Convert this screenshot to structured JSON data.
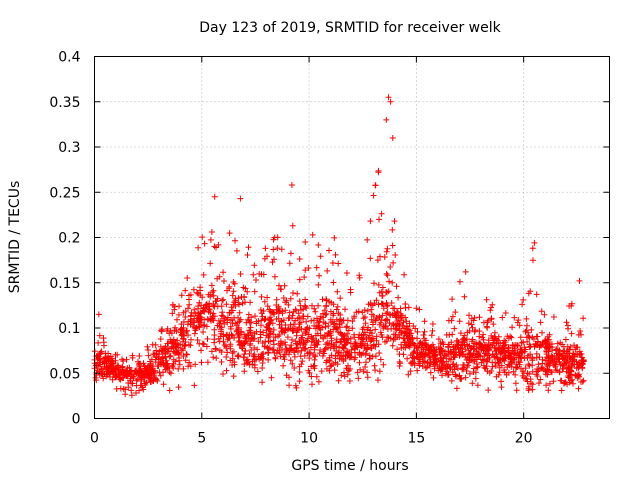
{
  "chart_data": {
    "type": "scatter",
    "title": "Day 123 of 2019, SRMTID for receiver welk",
    "xlabel": "GPS time / hours",
    "ylabel": "SRMTID / TECUs",
    "xlim": [
      0,
      24
    ],
    "ylim": [
      0,
      0.4
    ],
    "grid": true,
    "marker": "+",
    "color": "#ff0000",
    "x_ticks": [
      0,
      5,
      10,
      15,
      20
    ],
    "x_tick_labels": [
      "0",
      "5",
      "10",
      "15",
      "20"
    ],
    "y_ticks": [
      0,
      0.05,
      0.1,
      0.15,
      0.2,
      0.25,
      0.3,
      0.35,
      0.4
    ],
    "y_tick_labels": [
      "0",
      "0.05",
      "0.1",
      "0.15",
      "0.2",
      "0.25",
      "0.3",
      "0.35",
      "0.4"
    ],
    "envelope": {
      "x": [
        0,
        0.5,
        1,
        1.5,
        2,
        2.5,
        3,
        3.5,
        4,
        4.5,
        5,
        5.5,
        6,
        6.5,
        7,
        7.5,
        8,
        8.5,
        9,
        9.5,
        10,
        10.5,
        11,
        11.5,
        12,
        12.5,
        13,
        13.5,
        14,
        14.5,
        15,
        15.5,
        16,
        16.5,
        17,
        17.5,
        18,
        18.5,
        19,
        19.5,
        20,
        20.5,
        21,
        21.5,
        22,
        22.5,
        22.8
      ],
      "mean": [
        0.06,
        0.058,
        0.055,
        0.05,
        0.048,
        0.05,
        0.06,
        0.07,
        0.085,
        0.1,
        0.11,
        0.105,
        0.095,
        0.1,
        0.09,
        0.085,
        0.09,
        0.095,
        0.1,
        0.09,
        0.085,
        0.09,
        0.095,
        0.085,
        0.08,
        0.085,
        0.1,
        0.12,
        0.11,
        0.09,
        0.075,
        0.07,
        0.065,
        0.065,
        0.07,
        0.07,
        0.075,
        0.075,
        0.07,
        0.07,
        0.068,
        0.07,
        0.068,
        0.065,
        0.065,
        0.062,
        0.062
      ],
      "max": [
        0.115,
        0.09,
        0.08,
        0.075,
        0.07,
        0.08,
        0.1,
        0.12,
        0.14,
        0.18,
        0.2,
        0.245,
        0.2,
        0.24,
        0.21,
        0.19,
        0.2,
        0.21,
        0.258,
        0.18,
        0.215,
        0.21,
        0.22,
        0.19,
        0.16,
        0.18,
        0.245,
        0.355,
        0.24,
        0.15,
        0.125,
        0.11,
        0.1,
        0.12,
        0.162,
        0.125,
        0.14,
        0.15,
        0.12,
        0.11,
        0.15,
        0.195,
        0.13,
        0.11,
        0.12,
        0.15,
        0.11
      ],
      "min": [
        0.035,
        0.035,
        0.03,
        0.025,
        0.025,
        0.025,
        0.03,
        0.03,
        0.035,
        0.025,
        0.04,
        0.045,
        0.04,
        0.04,
        0.035,
        0.035,
        0.035,
        0.03,
        0.035,
        0.03,
        0.025,
        0.04,
        0.04,
        0.04,
        0.035,
        0.035,
        0.04,
        0.045,
        0.05,
        0.045,
        0.04,
        0.035,
        0.035,
        0.03,
        0.03,
        0.03,
        0.03,
        0.03,
        0.03,
        0.03,
        0.03,
        0.03,
        0.03,
        0.03,
        0.03,
        0.03,
        0.03
      ]
    },
    "notable_points": [
      {
        "x": 13.7,
        "y": 0.355
      },
      {
        "x": 13.8,
        "y": 0.35
      },
      {
        "x": 13.6,
        "y": 0.33
      },
      {
        "x": 13.9,
        "y": 0.31
      },
      {
        "x": 9.2,
        "y": 0.258
      },
      {
        "x": 5.6,
        "y": 0.245
      },
      {
        "x": 6.8,
        "y": 0.243
      },
      {
        "x": 20.5,
        "y": 0.194
      },
      {
        "x": 17.3,
        "y": 0.162
      },
      {
        "x": 22.6,
        "y": 0.152
      },
      {
        "x": 0.2,
        "y": 0.115
      }
    ],
    "sample_count": 2400
  }
}
